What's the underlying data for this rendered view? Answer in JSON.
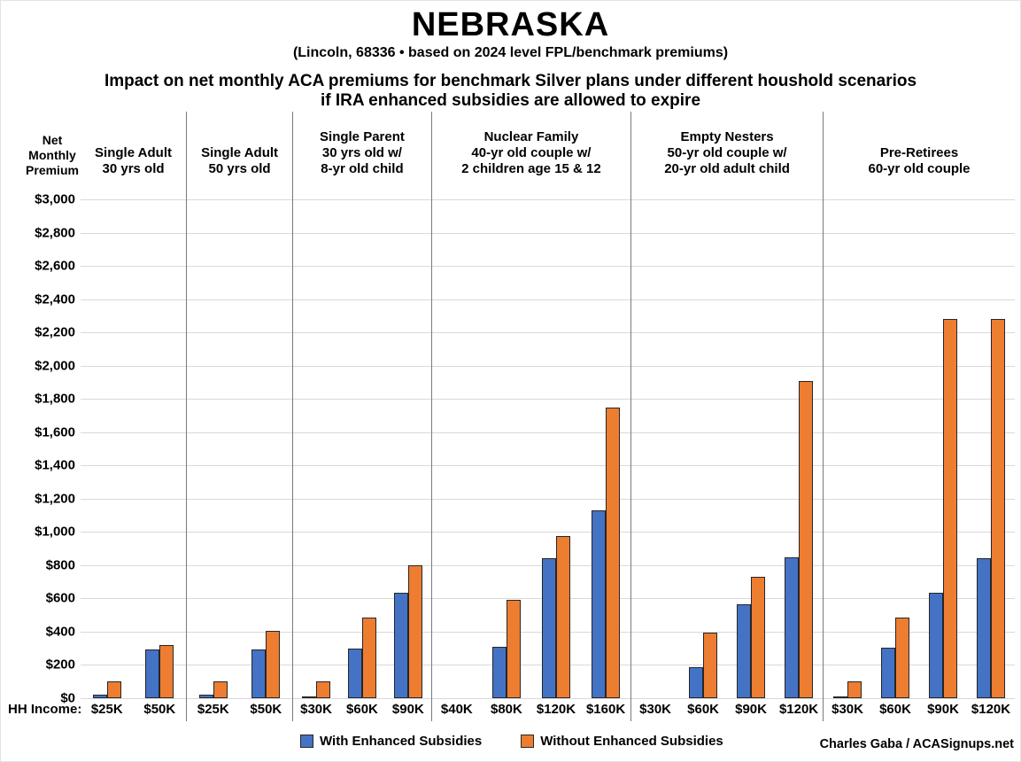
{
  "title": "NEBRASKA",
  "subtitle": "(Lincoln, 68336 • based on 2024 level FPL/benchmark premiums)",
  "heading": {
    "line1": "Impact on net monthly ACA premiums for benchmark Silver plans under different houshold scenarios",
    "line2": "if IRA enhanced subsidies are allowed to expire"
  },
  "corner_label": [
    "Net",
    "Monthly",
    "Premium"
  ],
  "hh_income_label": "HH Income:",
  "credit": "Charles Gaba / ACASignups.net",
  "colors": {
    "with_enhanced": "#4472C4",
    "without_enhanced": "#ED7D31",
    "bar_border": "#262626",
    "gridline": "#D9D9D9",
    "divider": "#7A7A7A"
  },
  "chart_data": {
    "type": "bar",
    "title": "NEBRASKA",
    "ylabel": "Net Monthly Premium",
    "ylim": [
      0,
      3000
    ],
    "ytick_step": 200,
    "ytick_prefix": "$",
    "grid": true,
    "legend_position": "bottom",
    "series": [
      {
        "key": "with_enhanced",
        "name": "With Enhanced Subsidies",
        "color": "#4472C4"
      },
      {
        "key": "without_enhanced",
        "name": "Without Enhanced Subsidies",
        "color": "#ED7D31"
      }
    ],
    "groups": [
      {
        "scenario": [
          "Single Adult",
          "30 yrs old"
        ],
        "hh_incomes": [
          "$25K",
          "$50K"
        ],
        "with_enhanced": [
          20,
          295
        ],
        "without_enhanced": [
          100,
          320
        ]
      },
      {
        "scenario": [
          "Single Adult",
          "50 yrs old"
        ],
        "hh_incomes": [
          "$25K",
          "$50K"
        ],
        "with_enhanced": [
          20,
          295
        ],
        "without_enhanced": [
          100,
          405
        ]
      },
      {
        "scenario": [
          "Single Parent",
          "30 yrs old w/",
          "8-yr old child"
        ],
        "hh_incomes": [
          "$30K",
          "$60K",
          "$90K"
        ],
        "with_enhanced": [
          5,
          300,
          635
        ],
        "without_enhanced": [
          100,
          485,
          800
        ]
      },
      {
        "scenario": [
          "Nuclear Family",
          "40-yr old couple w/",
          "2 children age 15 & 12"
        ],
        "hh_incomes": [
          "$40K",
          "$80K",
          "$120K",
          "$160K"
        ],
        "with_enhanced": [
          0,
          310,
          845,
          1130
        ],
        "without_enhanced": [
          0,
          590,
          975,
          1750
        ]
      },
      {
        "scenario": [
          "Empty Nesters",
          "50-yr old couple w/",
          "20-yr old adult child"
        ],
        "hh_incomes": [
          "$30K",
          "$60K",
          "$90K",
          "$120K"
        ],
        "with_enhanced": [
          0,
          185,
          565,
          850
        ],
        "without_enhanced": [
          0,
          395,
          730,
          1910
        ]
      },
      {
        "scenario": [
          "Pre-Retirees",
          "60-yr old couple"
        ],
        "hh_incomes": [
          "$30K",
          "$60K",
          "$90K",
          "$120K"
        ],
        "with_enhanced": [
          5,
          305,
          635,
          845
        ],
        "without_enhanced": [
          100,
          485,
          2285,
          2285
        ]
      }
    ]
  }
}
